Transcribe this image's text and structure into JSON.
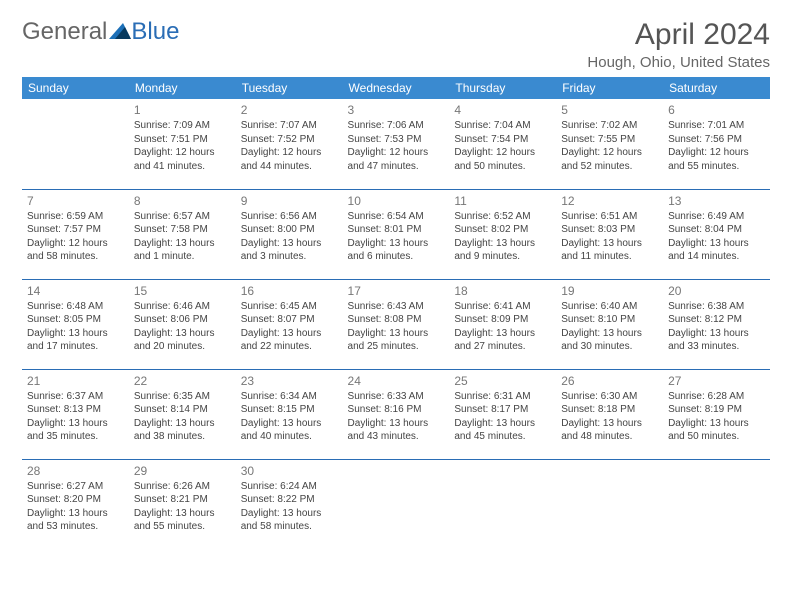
{
  "brand": {
    "part1": "General",
    "part2": "Blue"
  },
  "title": "April 2024",
  "location": "Hough, Ohio, United States",
  "colors": {
    "header_bg": "#3a8ad0",
    "header_text": "#ffffff",
    "rule": "#2a6db5",
    "body_text": "#444444",
    "daynum": "#777777",
    "title_text": "#555555",
    "brand_blue": "#2a6db5"
  },
  "weekdays": [
    "Sunday",
    "Monday",
    "Tuesday",
    "Wednesday",
    "Thursday",
    "Friday",
    "Saturday"
  ],
  "weeks": [
    [
      null,
      {
        "n": "1",
        "sr": "Sunrise: 7:09 AM",
        "ss": "Sunset: 7:51 PM",
        "dl": "Daylight: 12 hours and 41 minutes."
      },
      {
        "n": "2",
        "sr": "Sunrise: 7:07 AM",
        "ss": "Sunset: 7:52 PM",
        "dl": "Daylight: 12 hours and 44 minutes."
      },
      {
        "n": "3",
        "sr": "Sunrise: 7:06 AM",
        "ss": "Sunset: 7:53 PM",
        "dl": "Daylight: 12 hours and 47 minutes."
      },
      {
        "n": "4",
        "sr": "Sunrise: 7:04 AM",
        "ss": "Sunset: 7:54 PM",
        "dl": "Daylight: 12 hours and 50 minutes."
      },
      {
        "n": "5",
        "sr": "Sunrise: 7:02 AM",
        "ss": "Sunset: 7:55 PM",
        "dl": "Daylight: 12 hours and 52 minutes."
      },
      {
        "n": "6",
        "sr": "Sunrise: 7:01 AM",
        "ss": "Sunset: 7:56 PM",
        "dl": "Daylight: 12 hours and 55 minutes."
      }
    ],
    [
      {
        "n": "7",
        "sr": "Sunrise: 6:59 AM",
        "ss": "Sunset: 7:57 PM",
        "dl": "Daylight: 12 hours and 58 minutes."
      },
      {
        "n": "8",
        "sr": "Sunrise: 6:57 AM",
        "ss": "Sunset: 7:58 PM",
        "dl": "Daylight: 13 hours and 1 minute."
      },
      {
        "n": "9",
        "sr": "Sunrise: 6:56 AM",
        "ss": "Sunset: 8:00 PM",
        "dl": "Daylight: 13 hours and 3 minutes."
      },
      {
        "n": "10",
        "sr": "Sunrise: 6:54 AM",
        "ss": "Sunset: 8:01 PM",
        "dl": "Daylight: 13 hours and 6 minutes."
      },
      {
        "n": "11",
        "sr": "Sunrise: 6:52 AM",
        "ss": "Sunset: 8:02 PM",
        "dl": "Daylight: 13 hours and 9 minutes."
      },
      {
        "n": "12",
        "sr": "Sunrise: 6:51 AM",
        "ss": "Sunset: 8:03 PM",
        "dl": "Daylight: 13 hours and 11 minutes."
      },
      {
        "n": "13",
        "sr": "Sunrise: 6:49 AM",
        "ss": "Sunset: 8:04 PM",
        "dl": "Daylight: 13 hours and 14 minutes."
      }
    ],
    [
      {
        "n": "14",
        "sr": "Sunrise: 6:48 AM",
        "ss": "Sunset: 8:05 PM",
        "dl": "Daylight: 13 hours and 17 minutes."
      },
      {
        "n": "15",
        "sr": "Sunrise: 6:46 AM",
        "ss": "Sunset: 8:06 PM",
        "dl": "Daylight: 13 hours and 20 minutes."
      },
      {
        "n": "16",
        "sr": "Sunrise: 6:45 AM",
        "ss": "Sunset: 8:07 PM",
        "dl": "Daylight: 13 hours and 22 minutes."
      },
      {
        "n": "17",
        "sr": "Sunrise: 6:43 AM",
        "ss": "Sunset: 8:08 PM",
        "dl": "Daylight: 13 hours and 25 minutes."
      },
      {
        "n": "18",
        "sr": "Sunrise: 6:41 AM",
        "ss": "Sunset: 8:09 PM",
        "dl": "Daylight: 13 hours and 27 minutes."
      },
      {
        "n": "19",
        "sr": "Sunrise: 6:40 AM",
        "ss": "Sunset: 8:10 PM",
        "dl": "Daylight: 13 hours and 30 minutes."
      },
      {
        "n": "20",
        "sr": "Sunrise: 6:38 AM",
        "ss": "Sunset: 8:12 PM",
        "dl": "Daylight: 13 hours and 33 minutes."
      }
    ],
    [
      {
        "n": "21",
        "sr": "Sunrise: 6:37 AM",
        "ss": "Sunset: 8:13 PM",
        "dl": "Daylight: 13 hours and 35 minutes."
      },
      {
        "n": "22",
        "sr": "Sunrise: 6:35 AM",
        "ss": "Sunset: 8:14 PM",
        "dl": "Daylight: 13 hours and 38 minutes."
      },
      {
        "n": "23",
        "sr": "Sunrise: 6:34 AM",
        "ss": "Sunset: 8:15 PM",
        "dl": "Daylight: 13 hours and 40 minutes."
      },
      {
        "n": "24",
        "sr": "Sunrise: 6:33 AM",
        "ss": "Sunset: 8:16 PM",
        "dl": "Daylight: 13 hours and 43 minutes."
      },
      {
        "n": "25",
        "sr": "Sunrise: 6:31 AM",
        "ss": "Sunset: 8:17 PM",
        "dl": "Daylight: 13 hours and 45 minutes."
      },
      {
        "n": "26",
        "sr": "Sunrise: 6:30 AM",
        "ss": "Sunset: 8:18 PM",
        "dl": "Daylight: 13 hours and 48 minutes."
      },
      {
        "n": "27",
        "sr": "Sunrise: 6:28 AM",
        "ss": "Sunset: 8:19 PM",
        "dl": "Daylight: 13 hours and 50 minutes."
      }
    ],
    [
      {
        "n": "28",
        "sr": "Sunrise: 6:27 AM",
        "ss": "Sunset: 8:20 PM",
        "dl": "Daylight: 13 hours and 53 minutes."
      },
      {
        "n": "29",
        "sr": "Sunrise: 6:26 AM",
        "ss": "Sunset: 8:21 PM",
        "dl": "Daylight: 13 hours and 55 minutes."
      },
      {
        "n": "30",
        "sr": "Sunrise: 6:24 AM",
        "ss": "Sunset: 8:22 PM",
        "dl": "Daylight: 13 hours and 58 minutes."
      },
      null,
      null,
      null,
      null
    ]
  ]
}
